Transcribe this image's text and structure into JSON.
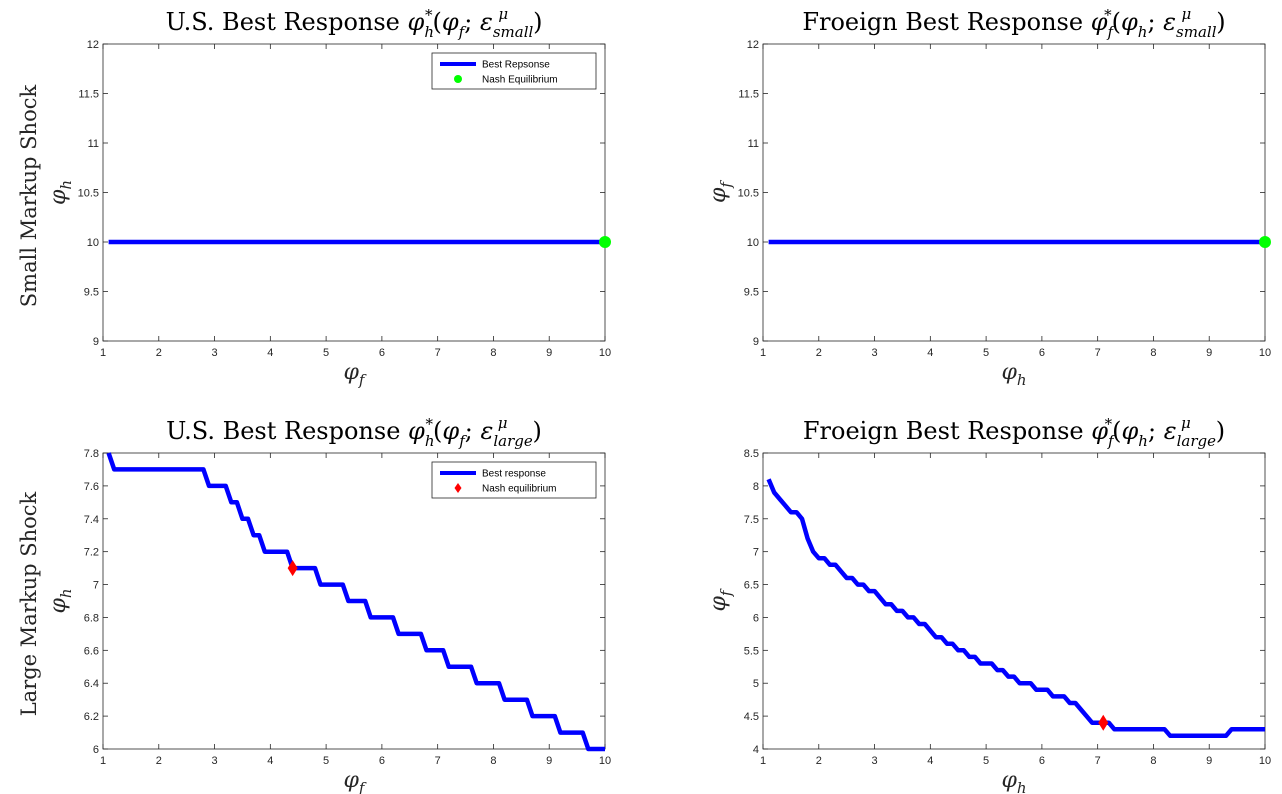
{
  "row_labels": [
    "Small Markup Shock",
    "Large Markup Shock"
  ],
  "chart_data": [
    {
      "type": "line",
      "title": "U.S. Best Response φ*h(φf; εμsmall)",
      "title_parts": [
        "U.S. Best Response ",
        "φ",
        "h",
        "*",
        "(",
        "φ",
        "f",
        "; ",
        "ε",
        "small",
        "μ",
        ")"
      ],
      "xlabel": "φf",
      "xlabel_parts": [
        "φ",
        "f"
      ],
      "ylabel": "φh",
      "ylabel_parts": [
        "φ",
        "h"
      ],
      "xlim": [
        1,
        10
      ],
      "ylim": [
        9,
        12
      ],
      "xticks": [
        1,
        2,
        3,
        4,
        5,
        6,
        7,
        8,
        9,
        10
      ],
      "yticks": [
        9,
        9.5,
        10,
        10.5,
        11,
        11.5,
        12
      ],
      "series": [
        {
          "name": "Best Repsonse",
          "color": "#0000ff",
          "style": "line",
          "x": [
            1.1,
            10
          ],
          "y": [
            10,
            10
          ]
        },
        {
          "name": "Nash Equilibrium",
          "color": "#00ff00",
          "style": "circle",
          "x": [
            10
          ],
          "y": [
            10
          ]
        }
      ],
      "legend": "top-right",
      "grid": false
    },
    {
      "type": "line",
      "title": "Froeign Best Response φ*f(φh; εμsmall)",
      "title_parts": [
        "Froeign Best Response ",
        "φ",
        "f",
        "*",
        "(",
        "φ",
        "h",
        "; ",
        "ε",
        "small",
        "μ",
        ")"
      ],
      "xlabel": "φh",
      "xlabel_parts": [
        "φ",
        "h"
      ],
      "ylabel": "φf",
      "ylabel_parts": [
        "φ",
        "f"
      ],
      "xlim": [
        1,
        10
      ],
      "ylim": [
        9,
        12
      ],
      "xticks": [
        1,
        2,
        3,
        4,
        5,
        6,
        7,
        8,
        9,
        10
      ],
      "yticks": [
        9,
        9.5,
        10,
        10.5,
        11,
        11.5,
        12
      ],
      "series": [
        {
          "name": "",
          "color": "#0000ff",
          "style": "line",
          "x": [
            1.1,
            10
          ],
          "y": [
            10,
            10
          ]
        },
        {
          "name": "",
          "color": "#00ff00",
          "style": "circle",
          "x": [
            10
          ],
          "y": [
            10
          ]
        }
      ],
      "legend": "none",
      "grid": false
    },
    {
      "type": "line",
      "title": "U.S. Best Response φ*h(φf; εμlarge)",
      "title_parts": [
        "U.S. Best Response ",
        "φ",
        "h",
        "*",
        "(",
        "φ",
        "f",
        "; ",
        "ε",
        "large",
        "μ",
        ")"
      ],
      "xlabel": "φf",
      "xlabel_parts": [
        "φ",
        "f"
      ],
      "ylabel": "φh",
      "ylabel_parts": [
        "φ",
        "h"
      ],
      "xlim": [
        1,
        10
      ],
      "ylim": [
        6,
        7.8
      ],
      "xticks": [
        1,
        2,
        3,
        4,
        5,
        6,
        7,
        8,
        9,
        10
      ],
      "yticks": [
        6,
        6.2,
        6.4,
        6.6,
        6.8,
        7,
        7.2,
        7.4,
        7.6,
        7.8
      ],
      "series": [
        {
          "name": "Best response",
          "color": "#0000ff",
          "style": "line",
          "x": [
            1.1,
            1.2,
            2.8,
            2.9,
            3.2,
            3.3,
            3.4,
            3.5,
            3.6,
            3.7,
            3.8,
            3.9,
            4.3,
            4.4,
            4.8,
            4.9,
            5.3,
            5.4,
            5.7,
            5.8,
            6.2,
            6.3,
            6.7,
            6.8,
            7.1,
            7.2,
            7.6,
            7.7,
            8.1,
            8.2,
            8.6,
            8.7,
            9.1,
            9.2,
            9.6,
            9.7,
            10
          ],
          "y": [
            7.8,
            7.7,
            7.7,
            7.6,
            7.6,
            7.5,
            7.5,
            7.4,
            7.4,
            7.3,
            7.3,
            7.2,
            7.2,
            7.1,
            7.1,
            7.0,
            7.0,
            6.9,
            6.9,
            6.8,
            6.8,
            6.7,
            6.7,
            6.6,
            6.6,
            6.5,
            6.5,
            6.4,
            6.4,
            6.3,
            6.3,
            6.2,
            6.2,
            6.1,
            6.1,
            6.0,
            6.0
          ]
        },
        {
          "name": "Nash equilibrium",
          "color": "#ff0000",
          "style": "diamond",
          "x": [
            4.4
          ],
          "y": [
            7.1
          ]
        }
      ],
      "legend": "top-right",
      "grid": false
    },
    {
      "type": "line",
      "title": "Froeign Best Response φ*f(φh; εμlarge)",
      "title_parts": [
        "Froeign Best Response ",
        "φ",
        "f",
        "*",
        "(",
        "φ",
        "h",
        "; ",
        "ε",
        "large",
        "μ",
        ")"
      ],
      "xlabel": "φh",
      "xlabel_parts": [
        "φ",
        "h"
      ],
      "ylabel": "φf",
      "ylabel_parts": [
        "φ",
        "f"
      ],
      "xlim": [
        1,
        10
      ],
      "ylim": [
        4,
        8.5
      ],
      "xticks": [
        1,
        2,
        3,
        4,
        5,
        6,
        7,
        8,
        9,
        10
      ],
      "yticks": [
        4,
        4.5,
        5,
        5.5,
        6,
        6.5,
        7,
        7.5,
        8,
        8.5
      ],
      "series": [
        {
          "name": "",
          "color": "#0000ff",
          "style": "line",
          "x": [
            1.1,
            1.2,
            1.3,
            1.4,
            1.5,
            1.6,
            1.7,
            1.8,
            1.9,
            2.0,
            2.1,
            2.2,
            2.3,
            2.4,
            2.5,
            2.6,
            2.7,
            2.8,
            2.9,
            3.0,
            3.1,
            3.2,
            3.3,
            3.4,
            3.5,
            3.6,
            3.7,
            3.8,
            3.9,
            4.0,
            4.1,
            4.2,
            4.3,
            4.4,
            4.5,
            4.6,
            4.7,
            4.8,
            4.9,
            5.0,
            5.1,
            5.2,
            5.3,
            5.4,
            5.5,
            5.6,
            5.7,
            5.8,
            5.9,
            6.0,
            6.1,
            6.2,
            6.3,
            6.4,
            6.5,
            6.6,
            6.7,
            6.8,
            6.9,
            7.0,
            7.1,
            7.2,
            7.3,
            7.4,
            7.5,
            7.6,
            7.7,
            7.8,
            7.9,
            8.0,
            8.1,
            8.2,
            8.3,
            8.4,
            8.5,
            8.6,
            8.7,
            8.8,
            8.9,
            9.0,
            9.1,
            9.2,
            9.3,
            9.4,
            9.5,
            9.6,
            9.7,
            9.8,
            9.9,
            10.0
          ],
          "y": [
            8.1,
            7.9,
            7.8,
            7.7,
            7.6,
            7.6,
            7.5,
            7.2,
            7.0,
            6.9,
            6.9,
            6.8,
            6.8,
            6.7,
            6.6,
            6.6,
            6.5,
            6.5,
            6.4,
            6.4,
            6.3,
            6.2,
            6.2,
            6.1,
            6.1,
            6.0,
            6.0,
            5.9,
            5.9,
            5.8,
            5.7,
            5.7,
            5.6,
            5.6,
            5.5,
            5.5,
            5.4,
            5.4,
            5.3,
            5.3,
            5.3,
            5.2,
            5.2,
            5.1,
            5.1,
            5.0,
            5.0,
            5.0,
            4.9,
            4.9,
            4.9,
            4.8,
            4.8,
            4.8,
            4.7,
            4.7,
            4.6,
            4.5,
            4.4,
            4.4,
            4.4,
            4.4,
            4.3,
            4.3,
            4.3,
            4.3,
            4.3,
            4.3,
            4.3,
            4.3,
            4.3,
            4.3,
            4.2,
            4.2,
            4.2,
            4.2,
            4.2,
            4.2,
            4.2,
            4.2,
            4.2,
            4.2,
            4.2,
            4.3,
            4.3,
            4.3,
            4.3,
            4.3,
            4.3,
            4.3
          ]
        },
        {
          "name": "",
          "color": "#ff0000",
          "style": "diamond",
          "x": [
            7.1
          ],
          "y": [
            4.4
          ]
        }
      ],
      "legend": "none",
      "grid": false
    }
  ]
}
